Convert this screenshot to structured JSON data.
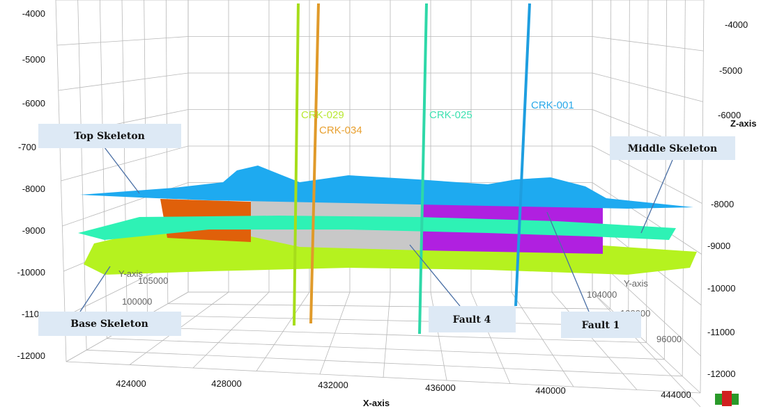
{
  "z_axis": {
    "title": "Z-axis",
    "left_ticks": [
      "-4000",
      "-5000",
      "-6000",
      "-700",
      "-8000",
      "-9000",
      "-10000",
      "-110",
      "-12000"
    ],
    "right_ticks": [
      "-4000",
      "-5000",
      "-6000",
      "-8000",
      "-9000",
      "-10000",
      "-11000",
      "-12000"
    ]
  },
  "x_axis": {
    "title": "X-axis",
    "ticks": [
      "424000",
      "428000",
      "432000",
      "436000",
      "440000",
      "444000"
    ]
  },
  "y_axis": {
    "title": "Y-axis",
    "left_title": "Y-axis",
    "left_ticks": [
      "105000",
      "100000"
    ],
    "right_ticks": [
      "104000",
      "100000",
      "96000"
    ]
  },
  "wells": [
    "CRK-029",
    "CRK-034",
    "CRK-025",
    "CRK-001"
  ],
  "callouts": [
    "Top Skeleton",
    "Middle Skeleton",
    "Base Skeleton",
    "Fault 4",
    "Fault 1"
  ]
}
